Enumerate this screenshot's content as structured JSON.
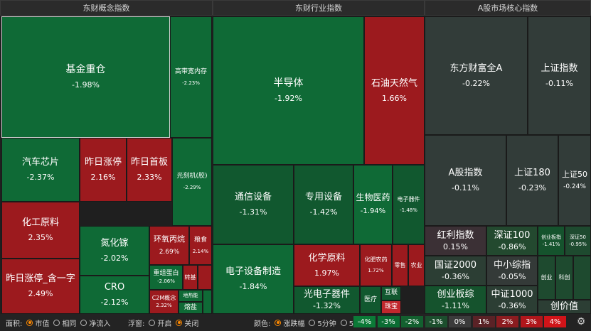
{
  "panels": [
    {
      "title": "东财概念指数"
    },
    {
      "title": "东财行业指数"
    },
    {
      "title": "A股市场核心指数"
    }
  ],
  "chart_data": {
    "type": "heatmap",
    "tiles": [
      {
        "name": "基金重仓",
        "value": "-1.98%",
        "color": "#0f6a36"
      },
      {
        "name": "高带宽内存",
        "value": "-2.23%",
        "color": "#0f6a36"
      },
      {
        "name": "汽车芯片",
        "value": "-2.37%",
        "color": "#0f6a36"
      },
      {
        "name": "昨日涨停",
        "value": "2.16%",
        "color": "#9c1a1e"
      },
      {
        "name": "昨日首板",
        "value": "2.33%",
        "color": "#9c1a1e"
      },
      {
        "name": "光刻机(胶)",
        "value": "-2.29%",
        "color": "#0f6a36"
      },
      {
        "name": "化工原料",
        "value": "2.35%",
        "color": "#9c1a1e"
      },
      {
        "name": "昨日涨停_含一字",
        "value": "2.49%",
        "color": "#9c1a1e"
      },
      {
        "name": "氮化镓",
        "value": "-2.02%",
        "color": "#0f6a36"
      },
      {
        "name": "CRO",
        "value": "-2.12%",
        "color": "#0f6a36"
      },
      {
        "name": "环氧丙烷",
        "value": "2.69%",
        "color": "#9c1a1e"
      },
      {
        "name": "粮食",
        "value": "2.14%",
        "color": "#9c1a1e"
      },
      {
        "name": "重组蛋白",
        "value": "-2.06%",
        "color": "#0f6a36"
      },
      {
        "name": "转基",
        "value": "",
        "color": "#9c1a1e"
      },
      {
        "name": "",
        "value": "",
        "color": "#9c1a1e"
      },
      {
        "name": "C2M概念",
        "value": "2.32%",
        "color": "#9c1a1e"
      },
      {
        "name": "地热能",
        "value": "",
        "color": "#0f6a36"
      },
      {
        "name": "熔盐",
        "value": "",
        "color": "#0f6a36"
      },
      {
        "name": "",
        "value": "",
        "color": "#0f6a36"
      },
      {
        "name": "半导体",
        "value": "-1.92%",
        "color": "#0f6a36"
      },
      {
        "name": "石油天然气",
        "value": "1.66%",
        "color": "#9c1a1e"
      },
      {
        "name": "通信设备",
        "value": "-1.31%",
        "color": "#11582f"
      },
      {
        "name": "专用设备",
        "value": "-1.42%",
        "color": "#11582f"
      },
      {
        "name": "生物医药",
        "value": "-1.94%",
        "color": "#0f6a36"
      },
      {
        "name": "电子器件",
        "value": "-1.48%",
        "color": "#11582f"
      },
      {
        "name": "电子设备制造",
        "value": "-1.84%",
        "color": "#0f6a36"
      },
      {
        "name": "化学原料",
        "value": "1.97%",
        "color": "#9c1a1e"
      },
      {
        "name": "化肥农药",
        "value": "1.72%",
        "color": "#9c1a1e"
      },
      {
        "name": "零售",
        "value": "",
        "color": "#9c1a1e"
      },
      {
        "name": "农业",
        "value": "",
        "color": "#9c1a1e"
      },
      {
        "name": "光电子器件",
        "value": "-1.32%",
        "color": "#11582f"
      },
      {
        "name": "医疗",
        "value": "",
        "color": "#11582f"
      },
      {
        "name": "互联",
        "value": "",
        "color": "#11582f"
      },
      {
        "name": "珠宝",
        "value": "",
        "color": "#c1272d"
      },
      {
        "name": "东方财富全A",
        "value": "-0.22%",
        "color": "#323c39"
      },
      {
        "name": "上证指数",
        "value": "-0.11%",
        "color": "#323c39"
      },
      {
        "name": "A股指数",
        "value": "-0.11%",
        "color": "#323c39"
      },
      {
        "name": "上证180",
        "value": "-0.23%",
        "color": "#323c39"
      },
      {
        "name": "上证50",
        "value": "-0.24%",
        "color": "#323c39"
      },
      {
        "name": "红利指数",
        "value": "0.15%",
        "color": "#3b3035"
      },
      {
        "name": "深证100",
        "value": "-0.86%",
        "color": "#23492f"
      },
      {
        "name": "创业板指",
        "value": "-1.41%",
        "color": "#15532d"
      },
      {
        "name": "深证50",
        "value": "-0.95%",
        "color": "#1e4a2f"
      },
      {
        "name": "国证2000",
        "value": "-0.36%",
        "color": "#2c3e34"
      },
      {
        "name": "中小综指",
        "value": "-0.05%",
        "color": "#343a38"
      },
      {
        "name": "创业",
        "value": "",
        "color": "#1e4a2f"
      },
      {
        "name": "科创",
        "value": "",
        "color": "#1e4a2f"
      },
      {
        "name": "",
        "value": "",
        "color": "#1e4a2f"
      },
      {
        "name": "创业板综",
        "value": "-1.11%",
        "color": "#15532d"
      },
      {
        "name": "中证1000",
        "value": "-0.36%",
        "color": "#2c3e34"
      },
      {
        "name": "创价值",
        "value": "",
        "color": "#2c3e34"
      }
    ]
  },
  "controls": {
    "area_label": "面积:",
    "area_options": [
      "市值",
      "相同",
      "净流入"
    ],
    "float_label": "浮窗:",
    "float_options": [
      "开启",
      "关闭"
    ],
    "color_label": "颜色:",
    "color_options": [
      "涨跌幅",
      "5分钟",
      "5日"
    ]
  },
  "legend": [
    {
      "label": "-4%",
      "color": "#0b7a37"
    },
    {
      "label": "-3%",
      "color": "#0b6d33"
    },
    {
      "label": "-2%",
      "color": "#13602f"
    },
    {
      "label": "-1%",
      "color": "#1c4e2d"
    },
    {
      "label": "0%",
      "color": "#3b3b3b"
    },
    {
      "label": "1%",
      "color": "#5a2226"
    },
    {
      "label": "2%",
      "color": "#8c1c20"
    },
    {
      "label": "3%",
      "color": "#b0161b"
    },
    {
      "label": "4%",
      "color": "#d11419"
    }
  ],
  "settings_icon": "gear-icon"
}
